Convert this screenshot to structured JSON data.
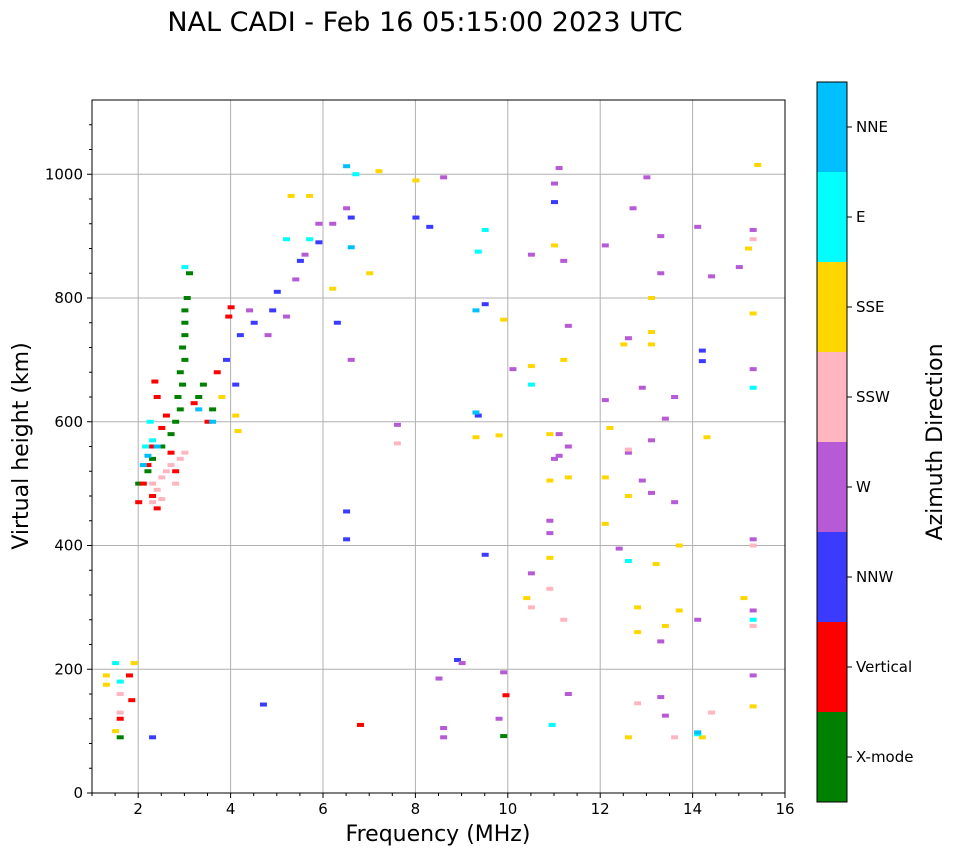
{
  "chart_data": {
    "type": "scatter",
    "title": "NAL CADI - Feb 16 05:15:00 2023 UTC",
    "xlabel": "Frequency (MHz)",
    "ylabel": "Virtual height (km)",
    "xlim": [
      1,
      16
    ],
    "ylim": [
      0,
      1120
    ],
    "x_ticks": [
      2,
      4,
      6,
      8,
      10,
      12,
      14,
      16
    ],
    "x_tick_labels": [
      "2",
      "4",
      "6",
      "8",
      "10",
      "12",
      "14",
      "16"
    ],
    "y_ticks": [
      0,
      200,
      400,
      600,
      800,
      1000
    ],
    "y_tick_labels": [
      "0",
      "200",
      "400",
      "600",
      "800",
      "1000"
    ],
    "grid": true,
    "colorbar": {
      "label": "Azimuth Direction",
      "categories": [
        {
          "name": "X-mode",
          "color": "#008000"
        },
        {
          "name": "Vertical",
          "color": "#ff0000"
        },
        {
          "name": "NNW",
          "color": "#3b3bff"
        },
        {
          "name": "W",
          "color": "#b65ad6"
        },
        {
          "name": "SSW",
          "color": "#ffb6c1"
        },
        {
          "name": "SSE",
          "color": "#ffd700"
        },
        {
          "name": "E",
          "color": "#00ffff"
        },
        {
          "name": "NNE",
          "color": "#00bfff"
        }
      ]
    },
    "series": [
      {
        "name": "X-mode",
        "points": [
          [
            1.6,
            90
          ],
          [
            3.1,
            840
          ],
          [
            3.05,
            800
          ],
          [
            3.0,
            780
          ],
          [
            3.0,
            760
          ],
          [
            3.0,
            740
          ],
          [
            2.95,
            720
          ],
          [
            3.0,
            700
          ],
          [
            2.9,
            680
          ],
          [
            2.95,
            660
          ],
          [
            2.85,
            640
          ],
          [
            2.9,
            620
          ],
          [
            2.8,
            600
          ],
          [
            3.4,
            660
          ],
          [
            3.3,
            640
          ],
          [
            3.6,
            620
          ],
          [
            2.7,
            580
          ],
          [
            2.5,
            560
          ],
          [
            2.3,
            540
          ],
          [
            2.2,
            520
          ],
          [
            2.0,
            500
          ],
          [
            9.9,
            92
          ]
        ]
      },
      {
        "name": "Vertical",
        "points": [
          [
            1.6,
            120
          ],
          [
            1.85,
            150
          ],
          [
            1.8,
            190
          ],
          [
            2.35,
            665
          ],
          [
            2.4,
            640
          ],
          [
            2.6,
            610
          ],
          [
            2.5,
            590
          ],
          [
            2.3,
            560
          ],
          [
            2.2,
            530
          ],
          [
            2.1,
            500
          ],
          [
            2.0,
            470
          ],
          [
            2.3,
            480
          ],
          [
            2.4,
            460
          ],
          [
            2.7,
            550
          ],
          [
            2.8,
            520
          ],
          [
            3.2,
            630
          ],
          [
            3.5,
            600
          ],
          [
            3.7,
            680
          ],
          [
            3.95,
            770
          ],
          [
            4.0,
            785
          ],
          [
            6.8,
            110
          ],
          [
            9.95,
            158
          ]
        ]
      },
      {
        "name": "NNW",
        "points": [
          [
            2.3,
            90
          ],
          [
            4.7,
            143
          ],
          [
            5.0,
            810
          ],
          [
            4.9,
            780
          ],
          [
            4.5,
            760
          ],
          [
            4.2,
            740
          ],
          [
            3.9,
            700
          ],
          [
            4.1,
            660
          ],
          [
            5.5,
            860
          ],
          [
            5.9,
            890
          ],
          [
            6.3,
            760
          ],
          [
            6.6,
            930
          ],
          [
            6.5,
            455
          ],
          [
            6.5,
            410
          ],
          [
            8.0,
            930
          ],
          [
            8.3,
            915
          ],
          [
            8.9,
            215
          ],
          [
            9.35,
            610
          ],
          [
            9.5,
            385
          ],
          [
            9.5,
            790
          ],
          [
            11.0,
            955
          ],
          [
            14.2,
            715
          ],
          [
            14.2,
            698
          ]
        ]
      },
      {
        "name": "W",
        "points": [
          [
            4.4,
            780
          ],
          [
            4.8,
            740
          ],
          [
            5.2,
            770
          ],
          [
            5.4,
            830
          ],
          [
            5.6,
            870
          ],
          [
            5.9,
            920
          ],
          [
            6.2,
            920
          ],
          [
            6.5,
            945
          ],
          [
            6.6,
            700
          ],
          [
            7.6,
            595
          ],
          [
            8.6,
            995
          ],
          [
            8.6,
            105
          ],
          [
            8.6,
            90
          ],
          [
            8.5,
            185
          ],
          [
            9.0,
            210
          ],
          [
            9.8,
            120
          ],
          [
            9.9,
            195
          ],
          [
            10.1,
            685
          ],
          [
            10.5,
            355
          ],
          [
            10.5,
            870
          ],
          [
            10.9,
            420
          ],
          [
            10.9,
            440
          ],
          [
            11.0,
            540
          ],
          [
            11.0,
            985
          ],
          [
            11.1,
            580
          ],
          [
            11.1,
            545
          ],
          [
            11.1,
            1010
          ],
          [
            11.2,
            860
          ],
          [
            11.3,
            560
          ],
          [
            11.3,
            755
          ],
          [
            11.3,
            160
          ],
          [
            12.1,
            885
          ],
          [
            12.1,
            635
          ],
          [
            12.4,
            395
          ],
          [
            12.6,
            735
          ],
          [
            12.6,
            550
          ],
          [
            12.7,
            945
          ],
          [
            12.9,
            655
          ],
          [
            12.9,
            505
          ],
          [
            13.0,
            995
          ],
          [
            13.1,
            485
          ],
          [
            13.1,
            570
          ],
          [
            13.3,
            900
          ],
          [
            13.3,
            840
          ],
          [
            13.3,
            245
          ],
          [
            13.3,
            155
          ],
          [
            13.4,
            605
          ],
          [
            13.6,
            640
          ],
          [
            13.6,
            470
          ],
          [
            13.4,
            125
          ],
          [
            14.1,
            915
          ],
          [
            14.1,
            280
          ],
          [
            14.4,
            835
          ],
          [
            15.0,
            850
          ],
          [
            15.3,
            910
          ],
          [
            15.3,
            685
          ],
          [
            15.3,
            410
          ],
          [
            15.3,
            295
          ],
          [
            15.3,
            190
          ]
        ]
      },
      {
        "name": "SSW",
        "points": [
          [
            2.3,
            500
          ],
          [
            2.4,
            490
          ],
          [
            2.5,
            510
          ],
          [
            2.6,
            520
          ],
          [
            2.7,
            530
          ],
          [
            2.8,
            500
          ],
          [
            2.9,
            540
          ],
          [
            3.0,
            550
          ],
          [
            2.3,
            470
          ],
          [
            2.5,
            475
          ],
          [
            1.6,
            160
          ],
          [
            1.6,
            130
          ],
          [
            7.6,
            565
          ],
          [
            10.5,
            300
          ],
          [
            10.9,
            330
          ],
          [
            11.2,
            280
          ],
          [
            12.6,
            555
          ],
          [
            12.8,
            145
          ],
          [
            13.6,
            90
          ],
          [
            14.4,
            130
          ],
          [
            15.3,
            895
          ],
          [
            15.3,
            400
          ],
          [
            15.3,
            270
          ]
        ]
      },
      {
        "name": "SSE",
        "points": [
          [
            1.3,
            190
          ],
          [
            1.3,
            175
          ],
          [
            1.5,
            100
          ],
          [
            1.9,
            210
          ],
          [
            4.15,
            585
          ],
          [
            4.1,
            610
          ],
          [
            3.8,
            640
          ],
          [
            5.3,
            965
          ],
          [
            5.7,
            965
          ],
          [
            6.2,
            815
          ],
          [
            7.0,
            840
          ],
          [
            7.2,
            1005
          ],
          [
            8.0,
            990
          ],
          [
            9.3,
            575
          ],
          [
            9.8,
            578
          ],
          [
            9.9,
            765
          ],
          [
            10.4,
            315
          ],
          [
            10.5,
            690
          ],
          [
            10.9,
            580
          ],
          [
            10.9,
            505
          ],
          [
            10.9,
            380
          ],
          [
            11.0,
            885
          ],
          [
            11.2,
            700
          ],
          [
            11.3,
            510
          ],
          [
            12.1,
            510
          ],
          [
            12.1,
            435
          ],
          [
            12.2,
            590
          ],
          [
            12.5,
            725
          ],
          [
            12.6,
            480
          ],
          [
            12.6,
            90
          ],
          [
            12.8,
            300
          ],
          [
            12.8,
            260
          ],
          [
            13.1,
            800
          ],
          [
            13.1,
            745
          ],
          [
            13.1,
            725
          ],
          [
            13.2,
            370
          ],
          [
            13.4,
            270
          ],
          [
            13.7,
            400
          ],
          [
            13.7,
            295
          ],
          [
            14.3,
            575
          ],
          [
            14.2,
            90
          ],
          [
            15.2,
            880
          ],
          [
            15.3,
            775
          ],
          [
            15.3,
            140
          ],
          [
            15.4,
            1015
          ],
          [
            15.1,
            315
          ]
        ]
      },
      {
        "name": "E",
        "points": [
          [
            1.5,
            210
          ],
          [
            1.6,
            180
          ],
          [
            2.15,
            560
          ],
          [
            2.3,
            570
          ],
          [
            2.25,
            600
          ],
          [
            3.0,
            850
          ],
          [
            5.2,
            895
          ],
          [
            5.7,
            895
          ],
          [
            6.7,
            1000
          ],
          [
            9.35,
            875
          ],
          [
            9.5,
            910
          ],
          [
            10.5,
            660
          ],
          [
            10.95,
            110
          ],
          [
            12.6,
            375
          ],
          [
            14.1,
            95
          ],
          [
            15.3,
            655
          ],
          [
            15.3,
            280
          ]
        ]
      },
      {
        "name": "NNE",
        "points": [
          [
            2.1,
            530
          ],
          [
            2.2,
            545
          ],
          [
            2.4,
            560
          ],
          [
            3.3,
            620
          ],
          [
            3.6,
            600
          ],
          [
            6.5,
            1013
          ],
          [
            6.6,
            882
          ],
          [
            9.3,
            780
          ],
          [
            9.3,
            615
          ],
          [
            14.1,
            98
          ]
        ]
      }
    ]
  }
}
